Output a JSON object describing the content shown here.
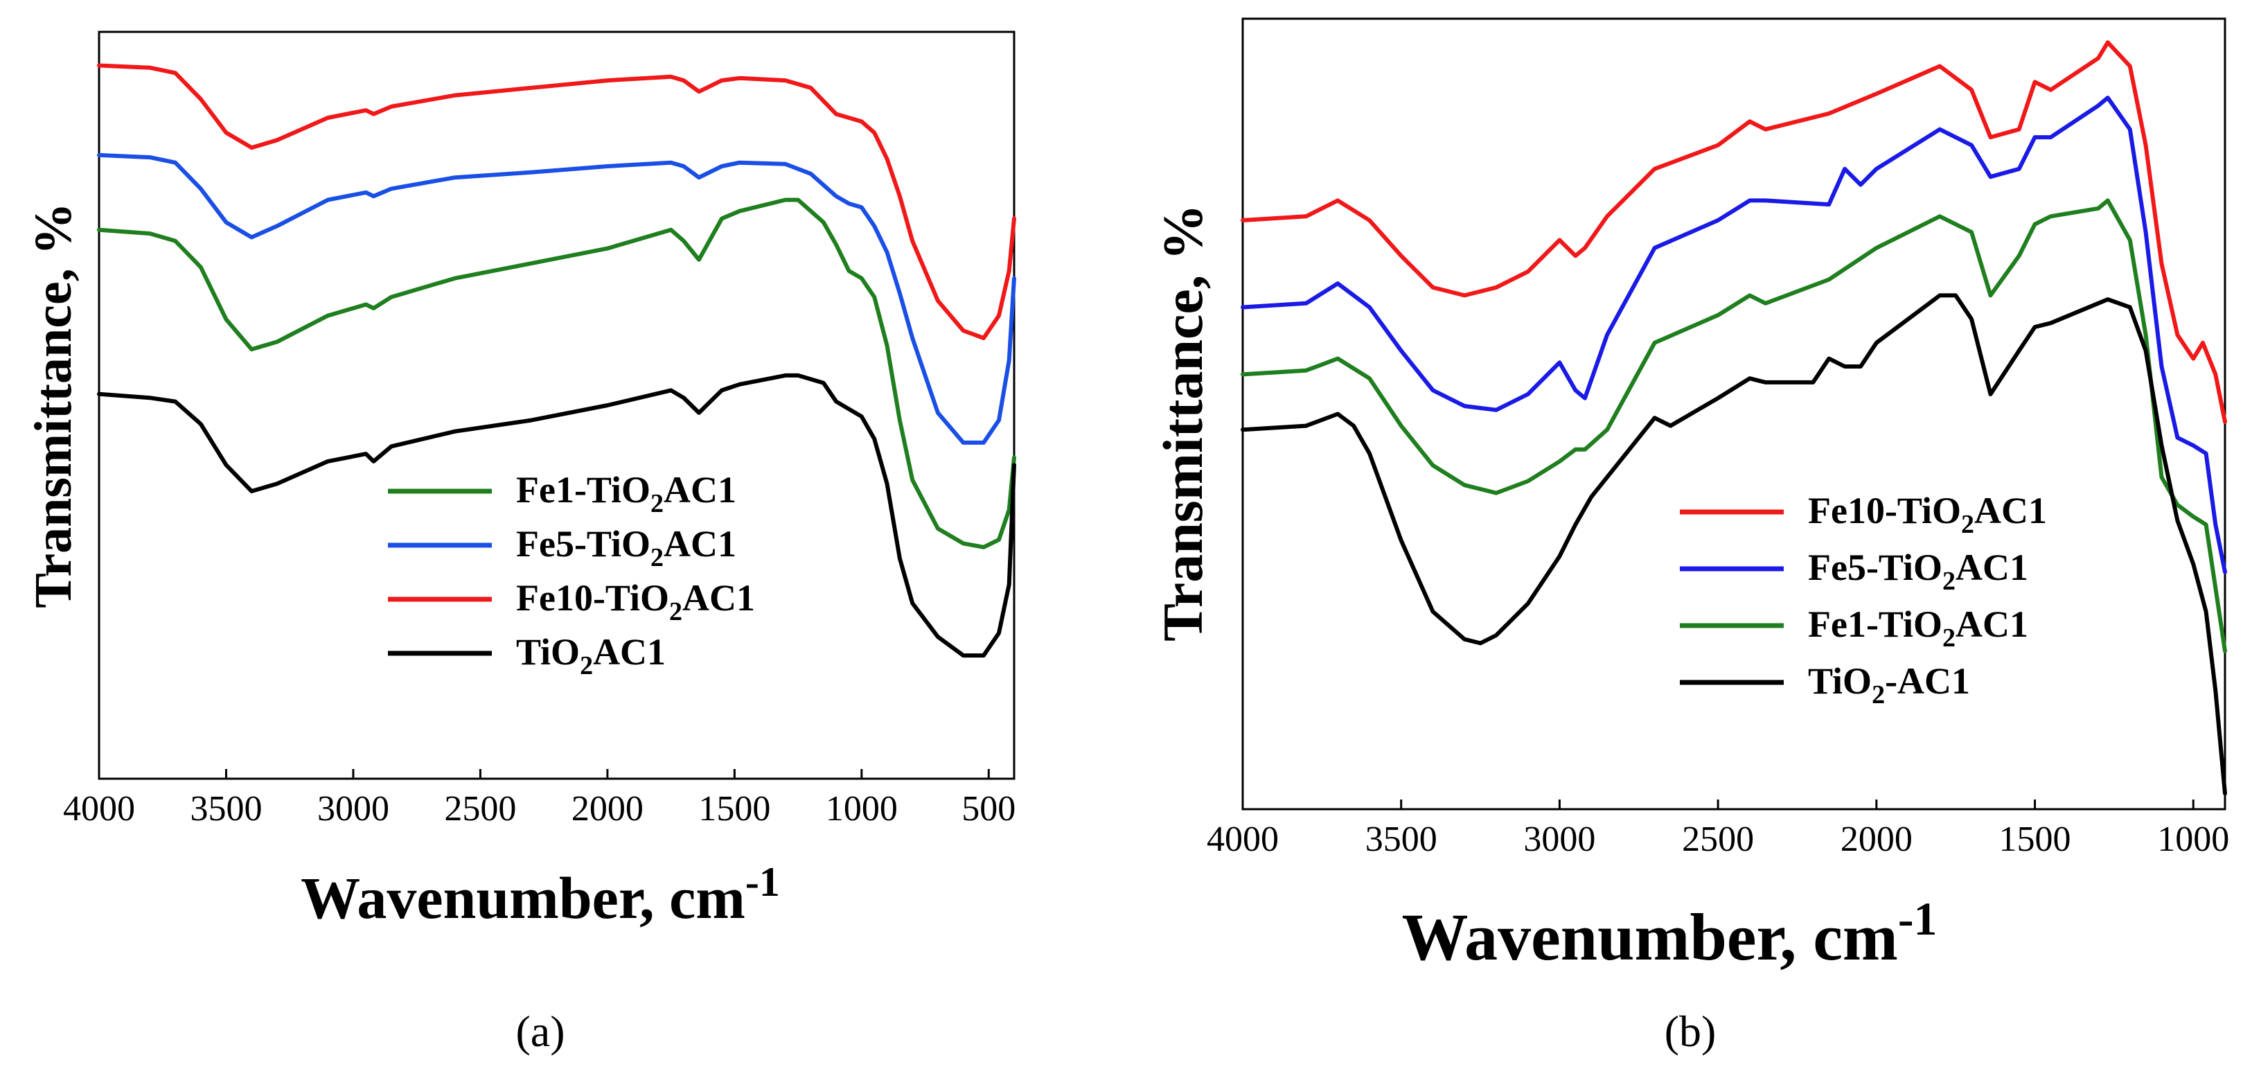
{
  "chart_data": [
    {
      "type": "line",
      "panel": "(a)",
      "xlabel": "Wavenumber, cm",
      "xlabel_sup": "-1",
      "ylabel": "Transmittance, %",
      "xlim": [
        4000,
        400
      ],
      "x_ticks": [
        4000,
        3500,
        3000,
        2500,
        2000,
        1500,
        1000,
        500
      ],
      "ylim": [
        0,
        100
      ],
      "y_ticks_shown": false,
      "legend": [
        {
          "base": "Fe1-TiO",
          "sub": "2",
          "tail": "AC1",
          "color": "#1f7f1f"
        },
        {
          "base": "Fe5-TiO",
          "sub": "2",
          "tail": "AC1",
          "color": "#1a4fe6"
        },
        {
          "base": "Fe10-TiO",
          "sub": "2",
          "tail": "AC1",
          "color": "#f01818"
        },
        {
          "base": "TiO",
          "sub": "2",
          "tail": "AC1",
          "color": "#000000"
        }
      ],
      "series": [
        {
          "name": "Fe10-TiO2AC1",
          "color": "#f01818",
          "x": [
            4000,
            3800,
            3700,
            3600,
            3500,
            3400,
            3300,
            3100,
            2950,
            2920,
            2850,
            2600,
            2300,
            2000,
            1750,
            1700,
            1640,
            1550,
            1480,
            1300,
            1200,
            1100,
            1050,
            1000,
            950,
            900,
            850,
            800,
            700,
            600,
            520,
            460,
            420,
            400
          ],
          "y": [
            95.5,
            95.2,
            94.5,
            91,
            86.5,
            84.5,
            85.5,
            88.5,
            89.5,
            89,
            90,
            91.5,
            92.5,
            93.5,
            94,
            93.5,
            92,
            93.5,
            93.8,
            93.5,
            92.5,
            89,
            88.5,
            88,
            86.5,
            83,
            78,
            72,
            64,
            60,
            59,
            62,
            68,
            75
          ]
        },
        {
          "name": "Fe5-TiO2AC1",
          "color": "#1a4fe6",
          "x": [
            4000,
            3800,
            3700,
            3600,
            3500,
            3400,
            3300,
            3100,
            2950,
            2920,
            2850,
            2600,
            2300,
            2000,
            1750,
            1700,
            1640,
            1550,
            1480,
            1300,
            1200,
            1100,
            1050,
            1000,
            950,
            900,
            850,
            800,
            700,
            600,
            520,
            460,
            420,
            400
          ],
          "y": [
            83.5,
            83.2,
            82.5,
            79,
            74.5,
            72.5,
            74,
            77.5,
            78.5,
            78,
            79,
            80.5,
            81.2,
            82,
            82.5,
            82,
            80.5,
            82,
            82.5,
            82.3,
            81,
            78,
            77,
            76.5,
            74,
            70.5,
            65,
            59,
            49,
            45,
            45,
            48,
            56,
            67
          ]
        },
        {
          "name": "Fe1-TiO2AC1",
          "color": "#1f7f1f",
          "x": [
            4000,
            3800,
            3700,
            3600,
            3500,
            3400,
            3300,
            3100,
            2950,
            2920,
            2850,
            2600,
            2300,
            2000,
            1750,
            1700,
            1640,
            1550,
            1480,
            1300,
            1250,
            1150,
            1100,
            1050,
            1000,
            950,
            900,
            850,
            800,
            700,
            600,
            520,
            460,
            420,
            400
          ],
          "y": [
            73.5,
            73,
            72,
            68.5,
            61.5,
            57.5,
            58.5,
            62,
            63.5,
            63,
            64.5,
            67,
            69,
            71,
            73.5,
            72,
            69.5,
            75,
            76,
            77.5,
            77.5,
            74.5,
            71.5,
            68,
            67,
            64.5,
            58,
            48,
            40,
            33.5,
            31.5,
            31,
            32,
            36,
            43
          ]
        },
        {
          "name": "TiO2AC1",
          "color": "#000000",
          "x": [
            4000,
            3800,
            3700,
            3600,
            3500,
            3400,
            3300,
            3100,
            2950,
            2920,
            2850,
            2600,
            2300,
            2000,
            1750,
            1700,
            1640,
            1550,
            1480,
            1300,
            1250,
            1150,
            1100,
            1050,
            1000,
            950,
            900,
            850,
            800,
            700,
            600,
            520,
            460,
            420,
            400
          ],
          "y": [
            51.5,
            51,
            50.5,
            47.5,
            42,
            38.5,
            39.5,
            42.5,
            43.5,
            42.5,
            44.5,
            46.5,
            48,
            50,
            52,
            51,
            49,
            52,
            52.8,
            54,
            54,
            53,
            50.5,
            49.5,
            48.5,
            45.5,
            39.5,
            29.5,
            23.5,
            19,
            16.5,
            16.5,
            19.5,
            26,
            42
          ]
        }
      ]
    },
    {
      "type": "line",
      "panel": "(b)",
      "xlabel": "Wavenumber, cm",
      "xlabel_sup": "-1",
      "ylabel": "Transmittance, %",
      "xlim": [
        4000,
        900
      ],
      "x_ticks": [
        4000,
        3500,
        3000,
        2500,
        2000,
        1500,
        1000
      ],
      "ylim": [
        0,
        100
      ],
      "y_ticks_shown": false,
      "legend": [
        {
          "base": "Fe10-TiO",
          "sub": "2",
          "tail": "AC1",
          "color": "#f01818"
        },
        {
          "base": "Fe5-TiO",
          "sub": "2",
          "tail": "AC1",
          "color": "#1a1ae6"
        },
        {
          "base": "Fe1-TiO",
          "sub": "2",
          "tail": "AC1",
          "color": "#1f7f1f"
        },
        {
          "base": "TiO",
          "sub": "2",
          "tail": "-AC1",
          "color": "#000000"
        }
      ],
      "series": [
        {
          "name": "Fe10-TiO2AC1",
          "color": "#f01818",
          "x": [
            4000,
            3800,
            3700,
            3600,
            3500,
            3400,
            3300,
            3200,
            3100,
            3000,
            2950,
            2920,
            2850,
            2700,
            2500,
            2400,
            2350,
            2150,
            2000,
            1800,
            1700,
            1640,
            1550,
            1500,
            1450,
            1300,
            1270,
            1200,
            1150,
            1100,
            1050,
            1000,
            970,
            930,
            900
          ],
          "y": [
            74.5,
            75,
            77,
            74.5,
            70,
            66,
            65,
            66,
            68,
            72,
            70,
            71,
            75,
            81,
            84,
            87,
            86,
            88,
            90.5,
            94,
            91,
            85,
            86,
            92,
            91,
            95,
            97,
            94,
            84,
            69,
            60,
            57,
            59,
            55,
            49
          ]
        },
        {
          "name": "Fe5-TiO2AC1",
          "color": "#1a1ae6",
          "x": [
            4000,
            3800,
            3700,
            3600,
            3500,
            3400,
            3300,
            3200,
            3100,
            3000,
            2950,
            2920,
            2850,
            2700,
            2500,
            2400,
            2350,
            2150,
            2100,
            2050,
            2000,
            1800,
            1700,
            1640,
            1550,
            1500,
            1450,
            1300,
            1270,
            1200,
            1150,
            1100,
            1050,
            1000,
            960,
            930,
            900
          ],
          "y": [
            63.5,
            64,
            66.5,
            63.5,
            58,
            53,
            51,
            50.5,
            52.5,
            56.5,
            53,
            52,
            60,
            71,
            74.5,
            77,
            77,
            76.5,
            81,
            79,
            81,
            86,
            84,
            80,
            81,
            85,
            85,
            89,
            90,
            86,
            73,
            56,
            47,
            46,
            45,
            36,
            30
          ]
        },
        {
          "name": "Fe1-TiO2AC1",
          "color": "#1f7f1f",
          "x": [
            4000,
            3800,
            3700,
            3600,
            3500,
            3400,
            3300,
            3200,
            3100,
            3000,
            2950,
            2920,
            2850,
            2700,
            2500,
            2400,
            2350,
            2150,
            2000,
            1800,
            1700,
            1640,
            1550,
            1500,
            1450,
            1300,
            1270,
            1200,
            1150,
            1100,
            1050,
            1000,
            960,
            930,
            900
          ],
          "y": [
            55,
            55.5,
            57,
            54.5,
            48.5,
            43.5,
            41,
            40,
            41.5,
            44,
            45.5,
            45.5,
            48,
            59,
            62.5,
            65,
            64,
            67,
            71,
            75,
            73,
            65,
            70,
            74,
            75,
            76,
            77,
            72,
            60,
            42,
            38.5,
            37,
            36,
            28,
            20
          ]
        },
        {
          "name": "TiO2-AC1",
          "color": "#000000",
          "x": [
            4000,
            3800,
            3700,
            3650,
            3600,
            3500,
            3400,
            3300,
            3250,
            3200,
            3100,
            3000,
            2950,
            2900,
            2700,
            2650,
            2500,
            2400,
            2350,
            2200,
            2150,
            2100,
            2050,
            2000,
            1800,
            1750,
            1700,
            1640,
            1550,
            1500,
            1450,
            1300,
            1270,
            1200,
            1150,
            1100,
            1050,
            1000,
            960,
            930,
            900
          ],
          "y": [
            48,
            48.5,
            50,
            48.5,
            45,
            34,
            25,
            21.5,
            21,
            22,
            26,
            32,
            36,
            39.5,
            49.5,
            48.5,
            52,
            54.5,
            54,
            54,
            57,
            56,
            56,
            59,
            65,
            65,
            62,
            52.5,
            58,
            61,
            61.5,
            64,
            64.5,
            63.5,
            58,
            46,
            36.5,
            31,
            25,
            15,
            2
          ]
        }
      ]
    }
  ]
}
